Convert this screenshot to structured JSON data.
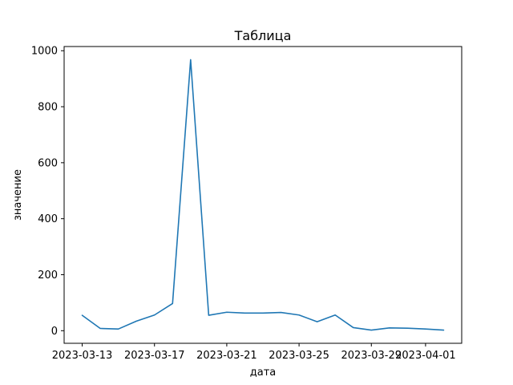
{
  "chart_data": {
    "type": "line",
    "title": "Таблица",
    "xlabel": "дата",
    "ylabel": "значение",
    "x": [
      "2023-03-13",
      "2023-03-14",
      "2023-03-15",
      "2023-03-16",
      "2023-03-17",
      "2023-03-18",
      "2023-03-19",
      "2023-03-20",
      "2023-03-21",
      "2023-03-22",
      "2023-03-23",
      "2023-03-24",
      "2023-03-25",
      "2023-03-26",
      "2023-03-27",
      "2023-03-28",
      "2023-03-29",
      "2023-03-30",
      "2023-03-31",
      "2023-04-01",
      "2023-04-02"
    ],
    "series": [
      {
        "color": "#1f77b4",
        "values": [
          55,
          8,
          6,
          34,
          56,
          97,
          968,
          55,
          66,
          63,
          63,
          65,
          56,
          32,
          56,
          11,
          2,
          10,
          9,
          6,
          2
        ]
      }
    ],
    "xlim": [
      "2023-03-12",
      "2023-04-03"
    ],
    "ylim": [
      -45,
      1015
    ],
    "x_ticks": [
      "2023-03-13",
      "2023-03-17",
      "2023-03-21",
      "2023-03-25",
      "2023-03-29",
      "2023-04-01"
    ],
    "y_ticks": [
      0,
      200,
      400,
      600,
      800,
      1000
    ],
    "grid": false,
    "legend": "none"
  }
}
